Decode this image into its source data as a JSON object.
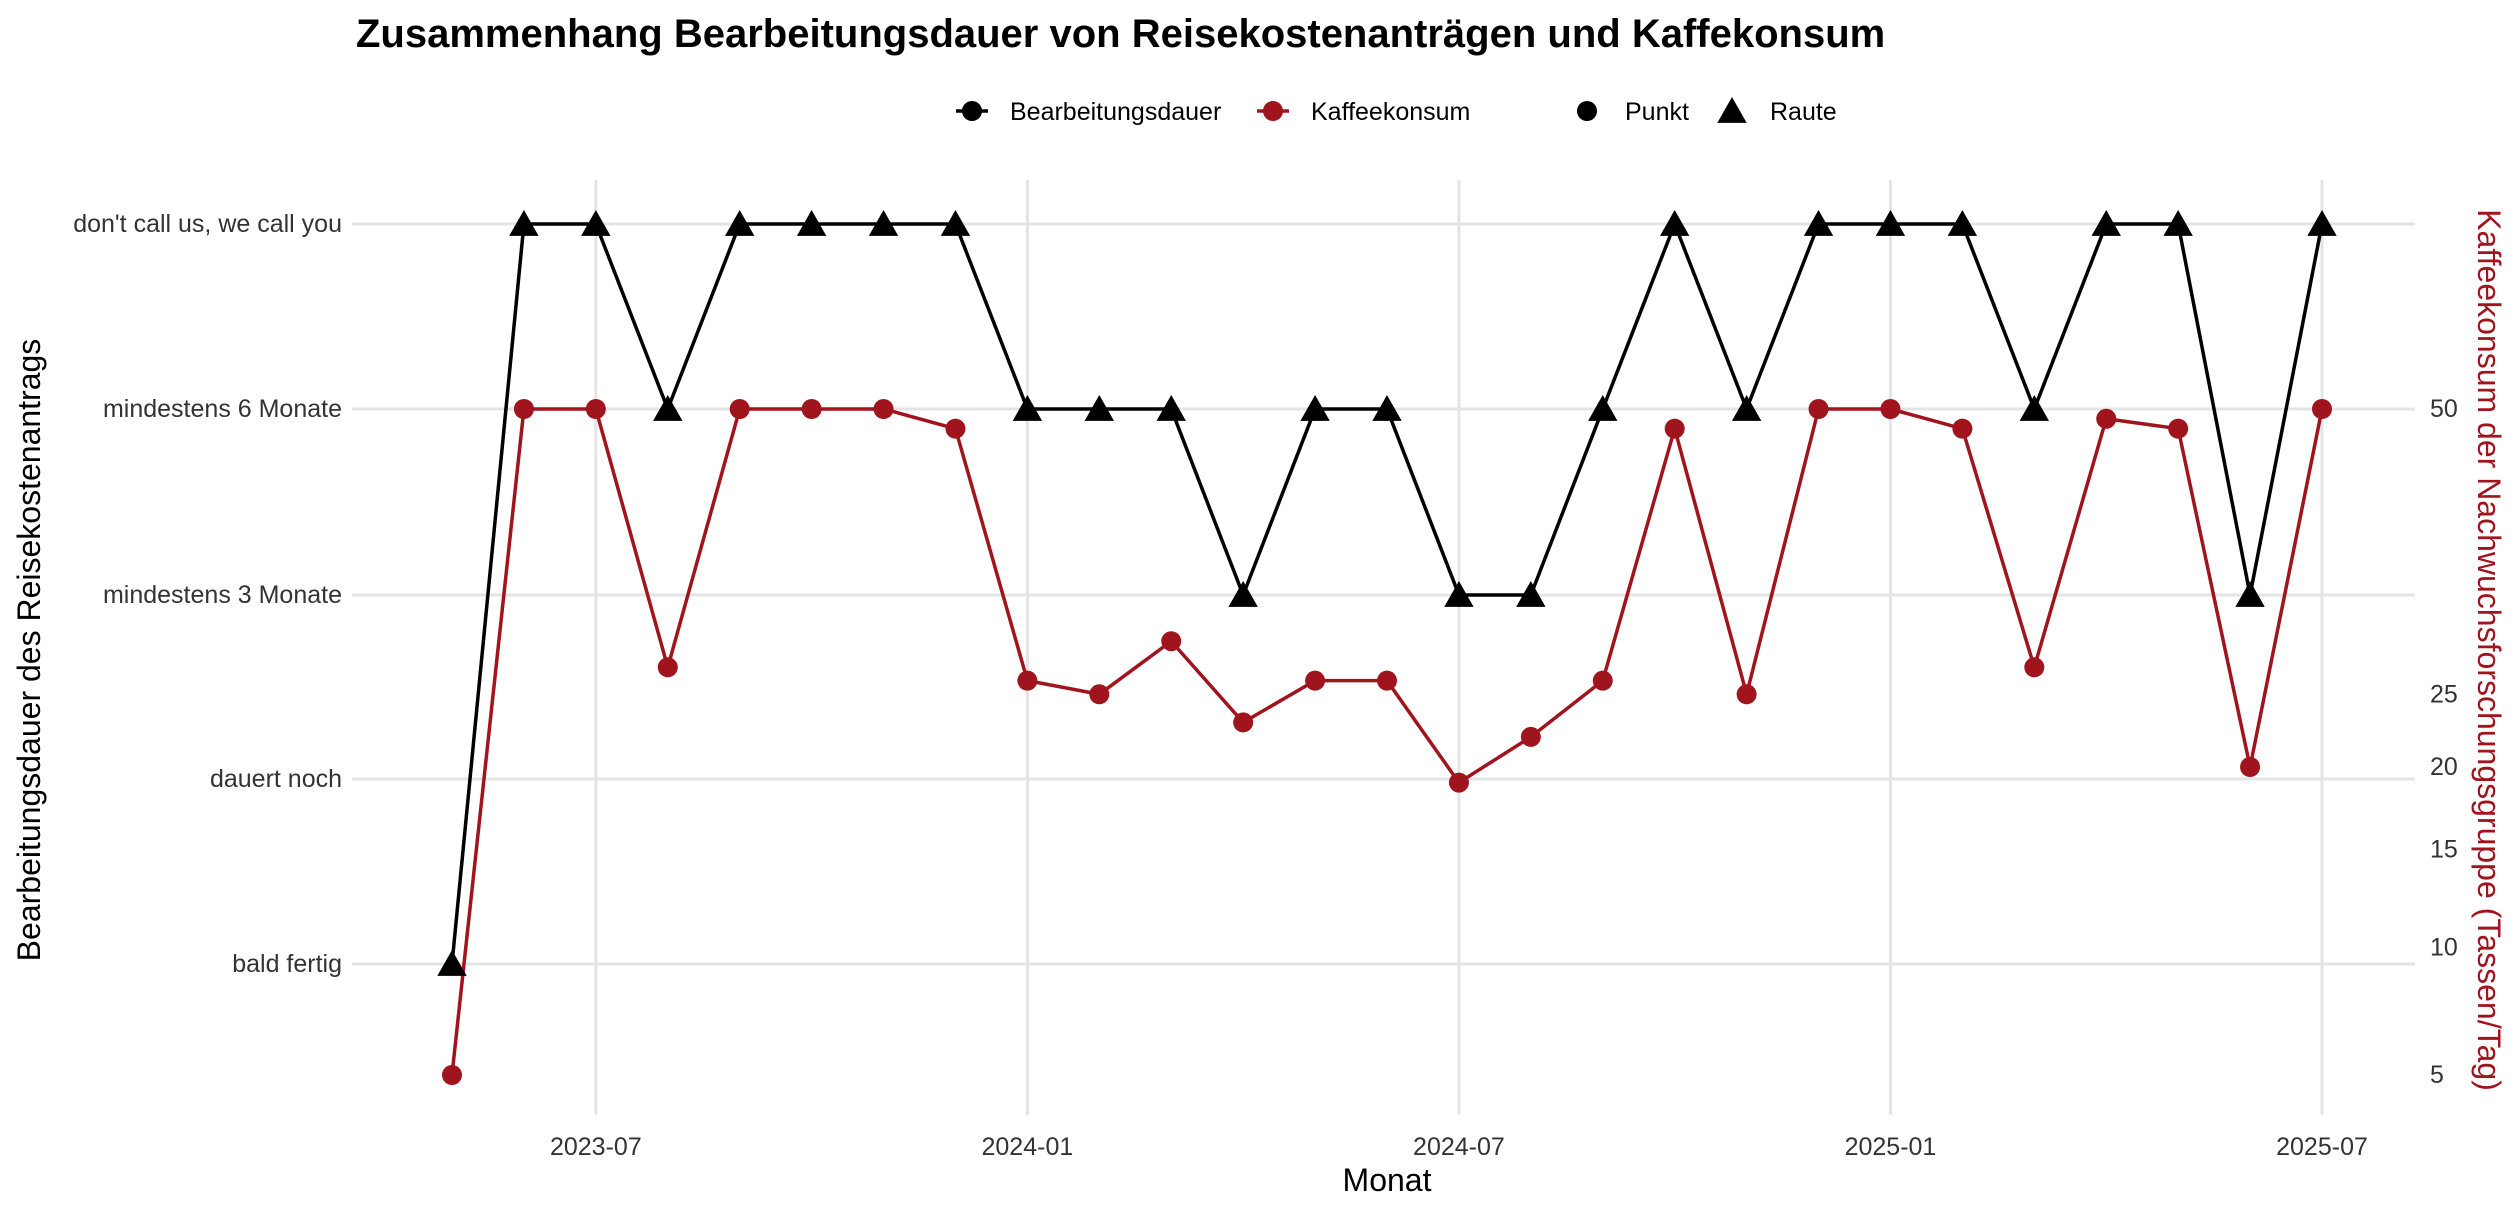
{
  "chart_data": {
    "type": "line",
    "title": "Zusammenhang Bearbeitungsdauer von Reisekostenanträgen und Kaffekonsum",
    "xlabel": "Monat",
    "ylabel": "Bearbeitungsdauer des Reisekostenantrags",
    "ylabel_right": "Kaffeekonsum der Nachwuchsforschungsgruppe (Tassen/Tag)",
    "x_ticks": [
      "2023-07",
      "2024-01",
      "2024-07",
      "2025-01",
      "2025-07"
    ],
    "y_categories": [
      "bald fertig",
      "dauert noch",
      "mindestens 3 Monate",
      "mindestens 6 Monate",
      "don't call us, we call you"
    ],
    "y_right_ticks": [
      5,
      10,
      15,
      20,
      25,
      50
    ],
    "y_right_range": [
      5,
      50
    ],
    "legend": {
      "placement": "top",
      "series_entries": [
        "Bearbeitungsdauer",
        "Kaffeekonsum"
      ],
      "shape_entries": [
        "Punkt",
        "Raute"
      ]
    },
    "x": [
      "2023-05",
      "2023-06",
      "2023-07",
      "2023-08",
      "2023-09",
      "2023-10",
      "2023-11",
      "2023-12",
      "2024-01",
      "2024-02",
      "2024-03",
      "2024-04",
      "2024-05",
      "2024-06",
      "2024-07",
      "2024-08",
      "2024-09",
      "2024-10",
      "2024-11",
      "2024-12",
      "2025-01",
      "2025-02",
      "2025-03",
      "2025-04",
      "2025-05",
      "2025-06",
      "2025-07"
    ],
    "series": [
      {
        "name": "Bearbeitungsdauer",
        "axis": "left",
        "color": "#000000",
        "marker": "triangle",
        "values": [
          "bald fertig",
          "don't call us, we call you",
          "don't call us, we call you",
          "mindestens 6 Monate",
          "don't call us, we call you",
          "don't call us, we call you",
          "don't call us, we call you",
          "don't call us, we call you",
          "mindestens 6 Monate",
          "mindestens 6 Monate",
          "mindestens 6 Monate",
          "mindestens 3 Monate",
          "mindestens 6 Monate",
          "mindestens 6 Monate",
          "mindestens 3 Monate",
          "mindestens 3 Monate",
          "mindestens 6 Monate",
          "don't call us, we call you",
          "mindestens 6 Monate",
          "don't call us, we call you",
          "don't call us, we call you",
          "don't call us, we call you",
          "mindestens 6 Monate",
          "don't call us, we call you",
          "don't call us, we call you",
          "mindestens 3 Monate",
          "don't call us, we call you"
        ]
      },
      {
        "name": "Kaffeekonsum",
        "axis": "right",
        "color": "#a0141e",
        "marker": "circle",
        "values": [
          5,
          50,
          50,
          27,
          50,
          50,
          50,
          48,
          26,
          25,
          29,
          23,
          26,
          26,
          19,
          22,
          26,
          48,
          25,
          50,
          50,
          48,
          27,
          49,
          48,
          20,
          50
        ]
      }
    ],
    "grid": true
  }
}
